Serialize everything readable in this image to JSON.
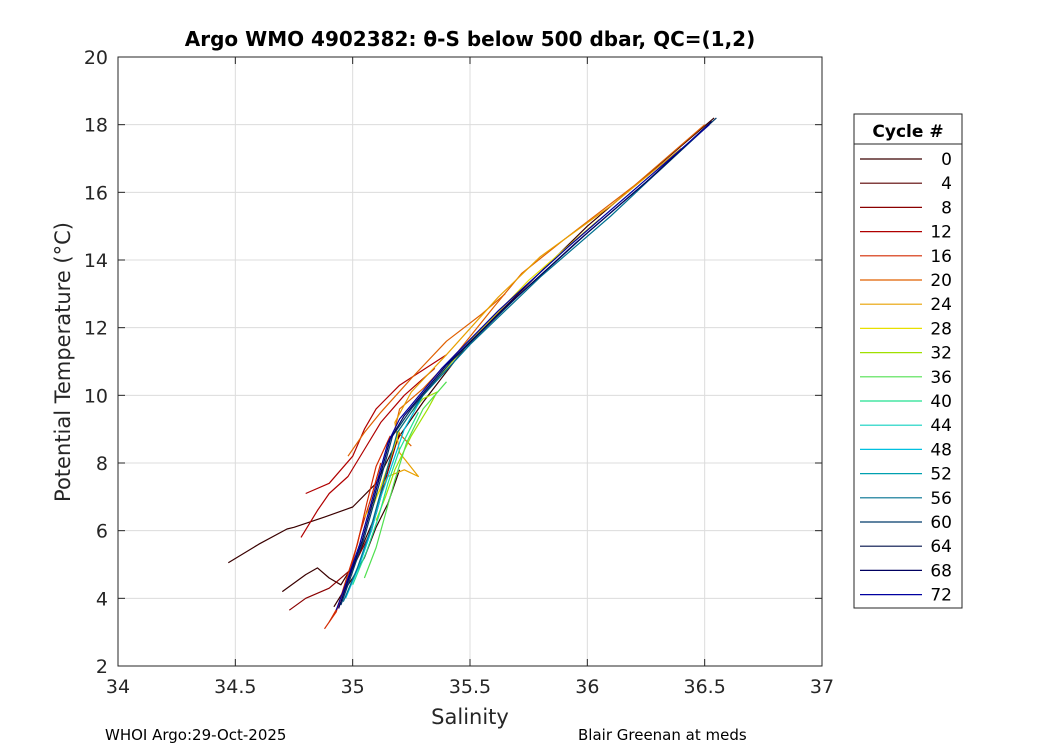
{
  "chart_data": {
    "type": "line",
    "title": "Argo WMO 4902382: θ-S below 500 dbar,  QC=(1,2)",
    "xlabel": "Salinity",
    "ylabel": "Potential Temperature (°C)",
    "xlim": [
      34,
      37
    ],
    "ylim": [
      2,
      20
    ],
    "xticks": [
      34,
      34.5,
      35,
      35.5,
      36,
      36.5,
      37
    ],
    "yticks": [
      2,
      4,
      6,
      8,
      10,
      12,
      14,
      16,
      18,
      20
    ],
    "xtick_labels": [
      "34",
      "34.5",
      "35",
      "35.5",
      "36",
      "36.5",
      "37"
    ],
    "ytick_labels": [
      "2",
      "4",
      "6",
      "8",
      "10",
      "12",
      "14",
      "16",
      "18",
      "20"
    ],
    "grid": true,
    "legend": {
      "title": "Cycle #",
      "placement": "right",
      "entries": [
        {
          "label": "0",
          "color": "#3a0000"
        },
        {
          "label": "4",
          "color": "#5a0000"
        },
        {
          "label": "8",
          "color": "#8a0000"
        },
        {
          "label": "12",
          "color": "#b00000"
        },
        {
          "label": "16",
          "color": "#d42a00"
        },
        {
          "label": "20",
          "color": "#e06000"
        },
        {
          "label": "24",
          "color": "#e8a000"
        },
        {
          "label": "28",
          "color": "#e8e000"
        },
        {
          "label": "32",
          "color": "#a0e000"
        },
        {
          "label": "36",
          "color": "#50e050"
        },
        {
          "label": "40",
          "color": "#20e090"
        },
        {
          "label": "44",
          "color": "#10d0c0"
        },
        {
          "label": "48",
          "color": "#00c0e0"
        },
        {
          "label": "52",
          "color": "#00a0b0"
        },
        {
          "label": "56",
          "color": "#007090"
        },
        {
          "label": "60",
          "color": "#003a6a"
        },
        {
          "label": "64",
          "color": "#00104a"
        },
        {
          "label": "68",
          "color": "#000060"
        },
        {
          "label": "72",
          "color": "#0000a0"
        }
      ]
    },
    "series": [
      {
        "color": "#3a0000",
        "points": [
          [
            34.47,
            5.05
          ],
          [
            34.6,
            5.6
          ],
          [
            34.72,
            6.05
          ],
          [
            34.75,
            6.1
          ],
          [
            34.88,
            6.4
          ],
          [
            35.0,
            6.7
          ],
          [
            35.1,
            7.4
          ],
          [
            35.2,
            8.8
          ],
          [
            35.3,
            9.8
          ],
          [
            35.5,
            11.6
          ],
          [
            36.0,
            15.0
          ],
          [
            36.54,
            18.2
          ]
        ]
      },
      {
        "color": "#3a0000",
        "points": [
          [
            34.7,
            4.2
          ],
          [
            34.8,
            4.7
          ],
          [
            34.85,
            4.9
          ],
          [
            34.9,
            4.6
          ],
          [
            34.95,
            4.4
          ],
          [
            35.02,
            5.2
          ],
          [
            35.1,
            6.5
          ],
          [
            35.18,
            8.5
          ]
        ]
      },
      {
        "color": "#3a0000",
        "points": [
          [
            34.92,
            3.75
          ],
          [
            34.96,
            4.2
          ],
          [
            35.0,
            4.6
          ],
          [
            35.05,
            5.2
          ],
          [
            35.1,
            6.1
          ],
          [
            35.15,
            6.8
          ],
          [
            35.2,
            7.8
          ]
        ]
      },
      {
        "color": "#8a0000",
        "points": [
          [
            34.73,
            3.65
          ],
          [
            34.8,
            4.0
          ],
          [
            34.9,
            4.3
          ],
          [
            35.0,
            4.9
          ],
          [
            35.08,
            6.0
          ],
          [
            35.13,
            7.3
          ],
          [
            35.2,
            8.9
          ]
        ]
      },
      {
        "color": "#b00000",
        "points": [
          [
            34.78,
            5.8
          ],
          [
            34.85,
            6.6
          ],
          [
            34.9,
            7.1
          ],
          [
            34.98,
            7.6
          ],
          [
            35.05,
            8.4
          ],
          [
            35.12,
            9.2
          ],
          [
            35.22,
            10.0
          ],
          [
            35.35,
            10.8
          ]
        ]
      },
      {
        "color": "#b00000",
        "points": [
          [
            34.8,
            7.1
          ],
          [
            34.9,
            7.4
          ],
          [
            35.0,
            8.2
          ],
          [
            35.05,
            9.0
          ],
          [
            35.1,
            9.6
          ],
          [
            35.2,
            10.3
          ],
          [
            35.4,
            11.2
          ]
        ]
      },
      {
        "color": "#d42a00",
        "points": [
          [
            34.88,
            3.1
          ],
          [
            34.93,
            3.6
          ],
          [
            34.97,
            4.5
          ],
          [
            35.02,
            5.6
          ],
          [
            35.06,
            6.8
          ],
          [
            35.1,
            7.9
          ],
          [
            35.16,
            8.8
          ]
        ]
      },
      {
        "color": "#d42a00",
        "points": [
          [
            34.9,
            3.3
          ],
          [
            34.95,
            3.9
          ],
          [
            34.99,
            4.8
          ],
          [
            35.03,
            5.9
          ],
          [
            35.08,
            7.0
          ],
          [
            35.12,
            8.0
          ]
        ]
      },
      {
        "color": "#e06000",
        "points": [
          [
            34.98,
            8.2
          ],
          [
            35.05,
            8.9
          ],
          [
            35.12,
            9.5
          ],
          [
            35.25,
            10.5
          ],
          [
            35.4,
            11.6
          ],
          [
            35.55,
            12.4
          ],
          [
            35.65,
            13.0
          ]
        ]
      },
      {
        "color": "#e06000",
        "points": [
          [
            35.25,
            8.5
          ],
          [
            35.18,
            9.0
          ],
          [
            35.2,
            9.6
          ],
          [
            35.3,
            10.2
          ],
          [
            35.45,
            11.3
          ],
          [
            35.6,
            12.6
          ],
          [
            35.72,
            13.6
          ],
          [
            35.9,
            14.6
          ],
          [
            36.2,
            16.2
          ],
          [
            36.5,
            18.0
          ]
        ]
      },
      {
        "color": "#e8a000",
        "points": [
          [
            35.05,
            6.4
          ],
          [
            35.1,
            7.0
          ],
          [
            35.15,
            7.6
          ],
          [
            35.22,
            7.8
          ],
          [
            35.28,
            7.6
          ],
          [
            35.2,
            8.3
          ],
          [
            35.18,
            9.2
          ],
          [
            35.25,
            10.1
          ],
          [
            35.4,
            11.2
          ],
          [
            35.62,
            12.9
          ],
          [
            35.8,
            14.1
          ],
          [
            36.1,
            15.6
          ],
          [
            36.4,
            17.3
          ]
        ]
      },
      {
        "color": "#e8e000",
        "points": [
          [
            35.08,
            6.6
          ],
          [
            35.12,
            7.3
          ],
          [
            35.16,
            8.1
          ],
          [
            35.2,
            9.0
          ],
          [
            35.3,
            10.0
          ],
          [
            35.5,
            11.6
          ],
          [
            35.75,
            13.4
          ],
          [
            36.05,
            15.2
          ]
        ]
      },
      {
        "color": "#a0e000",
        "points": [
          [
            35.1,
            6.3
          ],
          [
            35.14,
            7.0
          ],
          [
            35.18,
            7.8
          ],
          [
            35.25,
            8.8
          ],
          [
            35.32,
            9.6
          ],
          [
            35.36,
            10.1
          ],
          [
            35.3,
            9.9
          ],
          [
            35.25,
            9.5
          ]
        ]
      },
      {
        "color": "#50e050",
        "points": [
          [
            35.05,
            4.6
          ],
          [
            35.1,
            5.5
          ],
          [
            35.14,
            6.5
          ],
          [
            35.18,
            7.5
          ],
          [
            35.23,
            8.6
          ],
          [
            35.3,
            9.6
          ],
          [
            35.4,
            10.4
          ]
        ]
      },
      {
        "color": "#20e090",
        "points": [
          [
            35.0,
            4.4
          ],
          [
            35.06,
            5.4
          ],
          [
            35.11,
            6.4
          ],
          [
            35.15,
            7.4
          ],
          [
            35.2,
            8.4
          ],
          [
            35.28,
            9.5
          ]
        ]
      },
      {
        "color": "#00c0e0",
        "points": [
          [
            34.97,
            4.0
          ],
          [
            35.03,
            5.0
          ],
          [
            35.08,
            6.0
          ],
          [
            35.12,
            7.0
          ],
          [
            35.17,
            8.0
          ],
          [
            35.22,
            9.0
          ],
          [
            35.3,
            10.0
          ],
          [
            35.5,
            11.5
          ]
        ]
      },
      {
        "color": "#007090",
        "points": [
          [
            34.96,
            3.9
          ],
          [
            35.02,
            4.9
          ],
          [
            35.07,
            5.9
          ],
          [
            35.11,
            6.9
          ],
          [
            35.15,
            7.9
          ],
          [
            35.19,
            8.9
          ],
          [
            35.3,
            10.0
          ],
          [
            35.5,
            11.5
          ],
          [
            35.8,
            13.5
          ],
          [
            36.1,
            15.3
          ],
          [
            36.5,
            17.9
          ]
        ]
      },
      {
        "color": "#003a6a",
        "points": [
          [
            34.95,
            3.8
          ],
          [
            35.0,
            4.8
          ],
          [
            35.05,
            5.8
          ],
          [
            35.09,
            6.8
          ],
          [
            35.13,
            7.8
          ],
          [
            35.17,
            8.8
          ],
          [
            35.25,
            9.6
          ],
          [
            35.42,
            11.0
          ],
          [
            35.7,
            12.9
          ],
          [
            36.0,
            14.8
          ],
          [
            36.3,
            16.6
          ],
          [
            36.55,
            18.2
          ]
        ]
      },
      {
        "color": "#000060",
        "points": [
          [
            34.94,
            3.7
          ],
          [
            34.99,
            4.7
          ],
          [
            35.04,
            5.7
          ],
          [
            35.08,
            6.7
          ],
          [
            35.12,
            7.7
          ],
          [
            35.16,
            8.7
          ],
          [
            35.22,
            9.4
          ],
          [
            35.4,
            10.9
          ],
          [
            35.65,
            12.6
          ],
          [
            35.95,
            14.5
          ],
          [
            36.25,
            16.3
          ],
          [
            36.53,
            18.1
          ]
        ]
      },
      {
        "color": "#0000a0",
        "points": [
          [
            34.93,
            3.65
          ],
          [
            34.98,
            4.6
          ],
          [
            35.03,
            5.6
          ],
          [
            35.07,
            6.6
          ],
          [
            35.11,
            7.6
          ],
          [
            35.15,
            8.6
          ],
          [
            35.2,
            9.3
          ],
          [
            35.38,
            10.8
          ],
          [
            35.62,
            12.5
          ],
          [
            35.92,
            14.4
          ],
          [
            36.22,
            16.2
          ],
          [
            36.52,
            18.0
          ]
        ]
      }
    ]
  },
  "footer": {
    "left": "WHOI Argo:29-Oct-2025",
    "right": "Blair Greenan at meds"
  }
}
